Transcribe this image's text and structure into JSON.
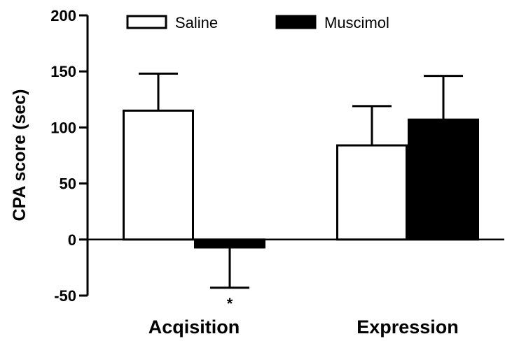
{
  "chart_data": {
    "type": "bar",
    "title": "",
    "xlabel": "",
    "ylabel": "CPA score (sec)",
    "ylim": [
      -50,
      200
    ],
    "yticks": [
      200,
      150,
      100,
      50,
      0,
      -50
    ],
    "ytick_labels": [
      "200",
      "150",
      "100",
      "50",
      "0",
      "-50"
    ],
    "categories": [
      "Acqisition",
      "Expression"
    ],
    "series": [
      {
        "name": "Saline",
        "values": [
          115,
          84
        ],
        "errors": [
          33,
          35
        ],
        "fill": "#ffffff"
      },
      {
        "name": "Muscimol",
        "values": [
          -7,
          107
        ],
        "errors": [
          36,
          39
        ],
        "fill": "#000000"
      }
    ],
    "legend_position": "top",
    "annotations": [
      {
        "text": "*",
        "category": "Acqisition",
        "series": "Muscimol"
      }
    ]
  }
}
